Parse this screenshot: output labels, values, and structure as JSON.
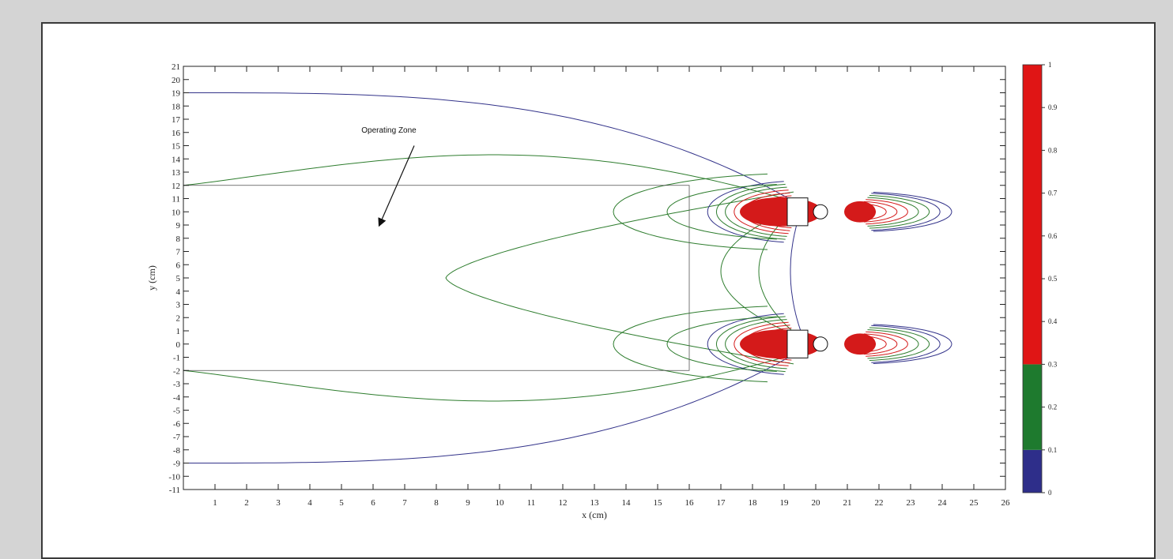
{
  "chart_data": {
    "type": "contour",
    "title": "",
    "xlabel": "x (cm)",
    "ylabel": "y (cm)",
    "xlim": [
      0,
      26
    ],
    "ylim": [
      -11,
      21
    ],
    "x_ticks": [
      "1",
      "2",
      "3",
      "4",
      "5",
      "6",
      "7",
      "8",
      "9",
      "10",
      "11",
      "12",
      "13",
      "14",
      "15",
      "16",
      "17",
      "18",
      "19",
      "20",
      "21",
      "22",
      "23",
      "24",
      "25",
      "26"
    ],
    "y_ticks": [
      "21",
      "20",
      "19",
      "18",
      "17",
      "16",
      "15",
      "14",
      "13",
      "12",
      "11",
      "10",
      "9",
      "8",
      "7",
      "6",
      "5",
      "4",
      "3",
      "2",
      "1",
      "0",
      "-1",
      "-2",
      "-3",
      "-4",
      "-5",
      "-6",
      "-7",
      "-8",
      "-9",
      "-10",
      "-11"
    ],
    "annotation": {
      "text": "Operating Zone",
      "text_at": [
        6.5,
        16
      ],
      "arrow_from": [
        7.3,
        15
      ],
      "arrow_to": [
        6.2,
        9
      ]
    },
    "operating_zone": {
      "x": [
        0,
        16
      ],
      "y": [
        -2,
        12
      ]
    },
    "sources": [
      {
        "x": 19.5,
        "y": 10
      },
      {
        "x": 19.5,
        "y": 0
      },
      {
        "x": 21.3,
        "y": 10
      },
      {
        "x": 21.3,
        "y": 0
      }
    ],
    "colorbar": {
      "min": 0,
      "max": 1,
      "tick_labels": [
        "1",
        "0.9",
        "0.8",
        "0.7",
        "0.6",
        "0.5",
        "0.4",
        "0.3",
        "0.2",
        "0.1",
        "0"
      ],
      "bands": [
        {
          "from": 0,
          "to": 0.1,
          "color": "#2e2e8a"
        },
        {
          "from": 0.1,
          "to": 0.3,
          "color": "#1e7a2e"
        },
        {
          "from": 0.3,
          "to": 1,
          "color": "#e01515"
        }
      ]
    },
    "grid": false
  }
}
